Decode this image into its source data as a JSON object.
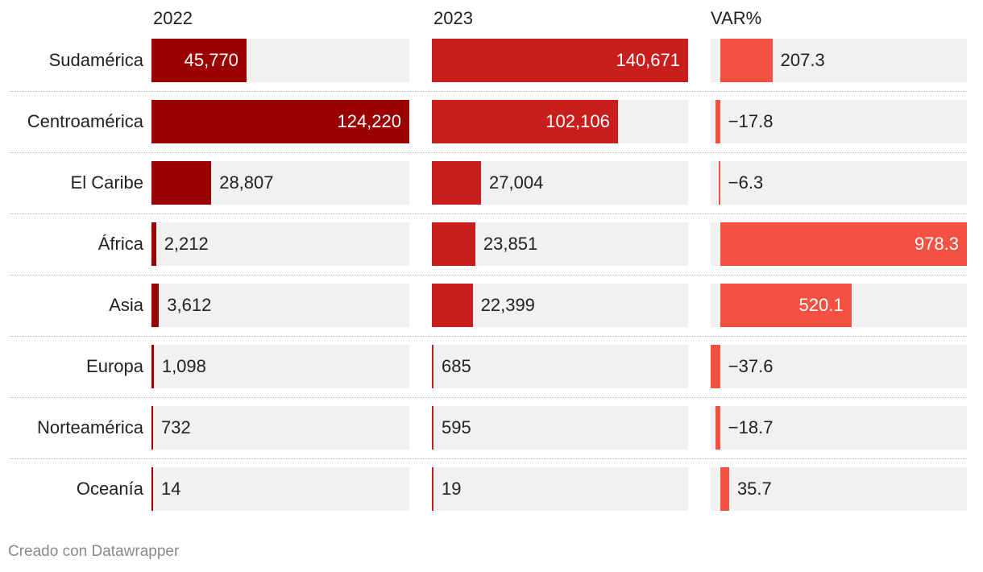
{
  "chart_data": {
    "type": "table",
    "columns": [
      {
        "title": "2022",
        "key": "y2022",
        "color": "#9b0000"
      },
      {
        "title": "2023",
        "key": "y2023",
        "color": "#c81e1e"
      },
      {
        "title": "VAR%",
        "key": "var",
        "color": "#f55142"
      }
    ],
    "rows": [
      {
        "region": "Sudamérica",
        "y2022": 45770,
        "y2022_label": "45,770",
        "y2023": 140671,
        "y2023_label": "140,671",
        "var": 207.3,
        "var_label": "207.3"
      },
      {
        "region": "Centroamérica",
        "y2022": 124220,
        "y2022_label": "124,220",
        "y2023": 102106,
        "y2023_label": "102,106",
        "var": -17.8,
        "var_label": "−17.8"
      },
      {
        "region": "El Caribe",
        "y2022": 28807,
        "y2022_label": "28,807",
        "y2023": 27004,
        "y2023_label": "27,004",
        "var": -6.3,
        "var_label": "−6.3"
      },
      {
        "region": "África",
        "y2022": 2212,
        "y2022_label": "2,212",
        "y2023": 23851,
        "y2023_label": "23,851",
        "var": 978.3,
        "var_label": "978.3"
      },
      {
        "region": "Asia",
        "y2022": 3612,
        "y2022_label": "3,612",
        "y2023": 22399,
        "y2023_label": "22,399",
        "var": 520.1,
        "var_label": "520.1"
      },
      {
        "region": "Europa",
        "y2022": 1098,
        "y2022_label": "1,098",
        "y2023": 685,
        "y2023_label": "685",
        "var": -37.6,
        "var_label": "−37.6"
      },
      {
        "region": "Norteamérica",
        "y2022": 732,
        "y2022_label": "732",
        "y2023": 595,
        "y2023_label": "595",
        "var": -18.7,
        "var_label": "−18.7"
      },
      {
        "region": "Oceanía",
        "y2022": 14,
        "y2022_label": "14",
        "y2023": 19,
        "y2023_label": "19",
        "var": 35.7,
        "var_label": "35.7"
      }
    ]
  },
  "footer": {
    "credit": "Creado con Datawrapper"
  }
}
